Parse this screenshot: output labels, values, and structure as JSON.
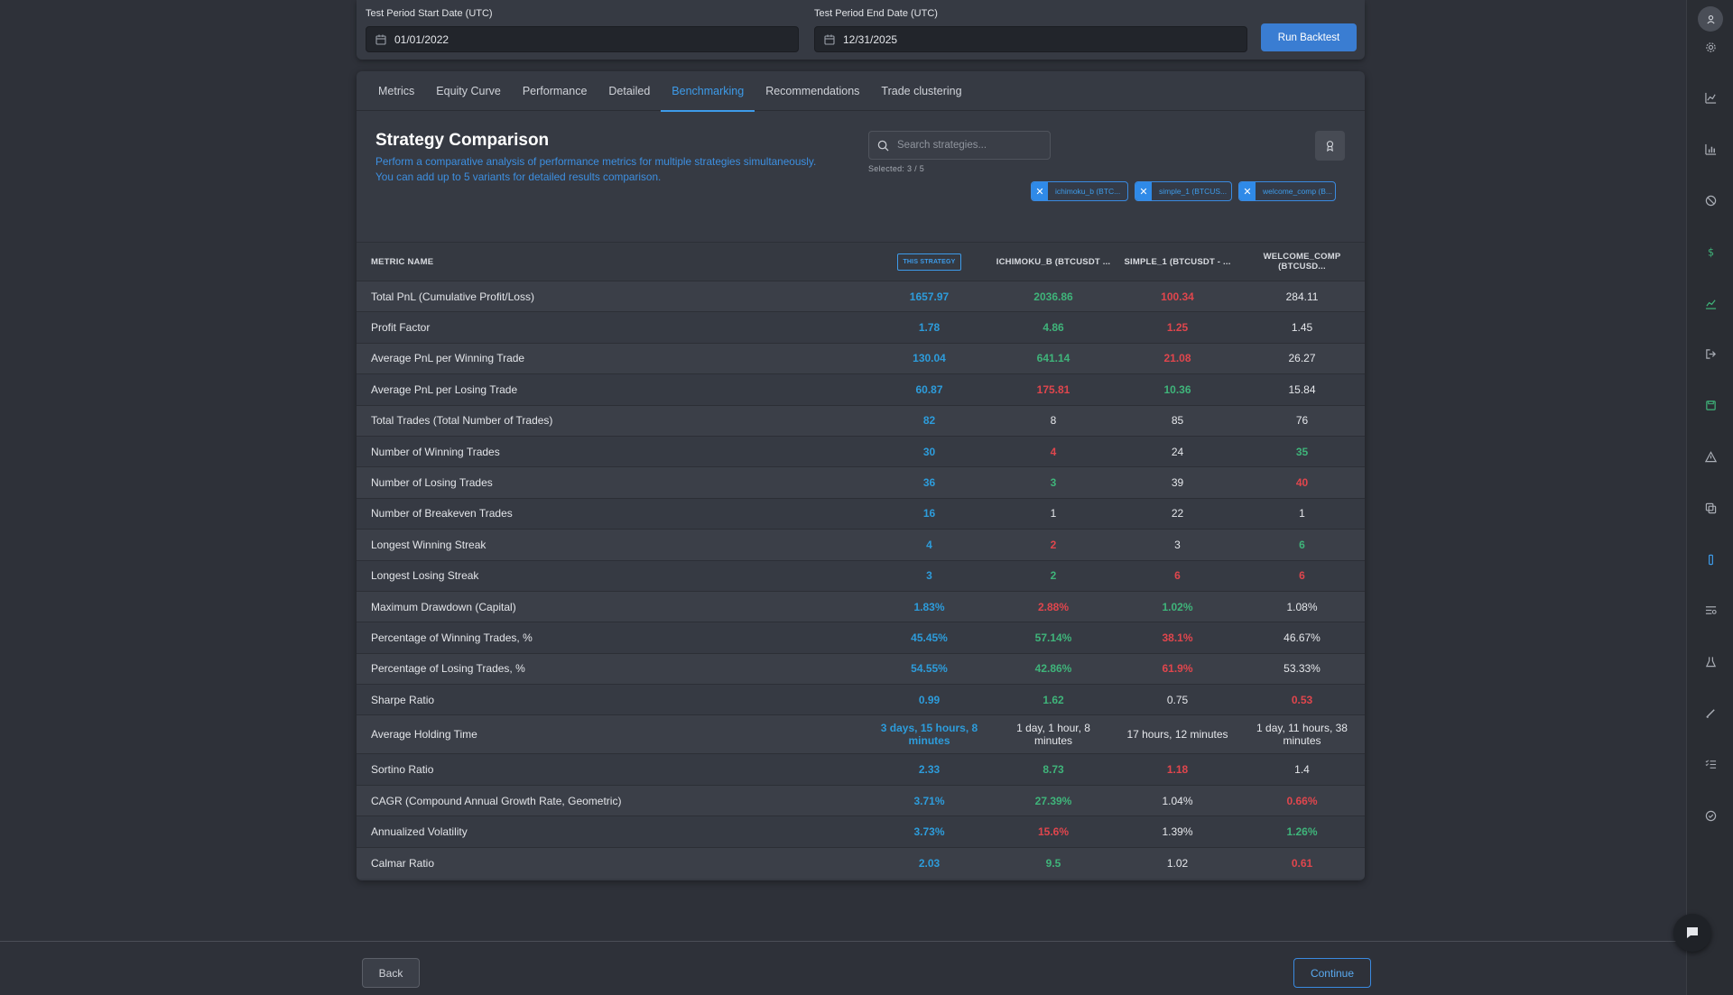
{
  "period": {
    "start_label": "Test Period Start Date (UTC)",
    "start_value": "01/01/2022",
    "end_label": "Test Period End Date (UTC)",
    "end_value": "12/31/2025",
    "run_label": "Run Backtest"
  },
  "tabs": [
    "Metrics",
    "Equity Curve",
    "Performance",
    "Detailed",
    "Benchmarking",
    "Recommendations",
    "Trade clustering"
  ],
  "active_tab": "Benchmarking",
  "comparison": {
    "title": "Strategy Comparison",
    "desc_line1": "Perform a comparative analysis of performance metrics for multiple strategies simultaneously.",
    "desc_line2": "You can add up to 5 variants for detailed results comparison.",
    "search_placeholder": "Search strategies...",
    "selected_count": "Selected: 3 / 5",
    "chips": [
      "ichimoku_b (BTC...",
      "simple_1 (BTCUS...",
      "welcome_comp (B..."
    ]
  },
  "table": {
    "metric_header": "METRIC NAME",
    "this_strategy_label": "THIS STRATEGY",
    "col_headers": [
      "ICHIMOKU_B (BTCUSDT ...",
      "SIMPLE_1 (BTCUSDT - ...",
      "WELCOME_COMP (BTCUSD..."
    ],
    "rows": [
      {
        "metric": "Total PnL (Cumulative Profit/Loss)",
        "cells": [
          {
            "v": "1657.97",
            "c": "blue"
          },
          {
            "v": "2036.86",
            "c": "green"
          },
          {
            "v": "100.34",
            "c": "red"
          },
          {
            "v": "284.11",
            "c": "plain"
          }
        ]
      },
      {
        "metric": "Profit Factor",
        "cells": [
          {
            "v": "1.78",
            "c": "blue"
          },
          {
            "v": "4.86",
            "c": "green"
          },
          {
            "v": "1.25",
            "c": "red"
          },
          {
            "v": "1.45",
            "c": "plain"
          }
        ]
      },
      {
        "metric": "Average PnL per Winning Trade",
        "cells": [
          {
            "v": "130.04",
            "c": "blue"
          },
          {
            "v": "641.14",
            "c": "green"
          },
          {
            "v": "21.08",
            "c": "red"
          },
          {
            "v": "26.27",
            "c": "plain"
          }
        ]
      },
      {
        "metric": "Average PnL per Losing Trade",
        "cells": [
          {
            "v": "60.87",
            "c": "blue"
          },
          {
            "v": "175.81",
            "c": "red"
          },
          {
            "v": "10.36",
            "c": "green"
          },
          {
            "v": "15.84",
            "c": "plain"
          }
        ]
      },
      {
        "metric": "Total Trades (Total Number of Trades)",
        "cells": [
          {
            "v": "82",
            "c": "blue"
          },
          {
            "v": "8",
            "c": "plain"
          },
          {
            "v": "85",
            "c": "plain"
          },
          {
            "v": "76",
            "c": "plain"
          }
        ]
      },
      {
        "metric": "Number of Winning Trades",
        "cells": [
          {
            "v": "30",
            "c": "blue"
          },
          {
            "v": "4",
            "c": "red"
          },
          {
            "v": "24",
            "c": "plain"
          },
          {
            "v": "35",
            "c": "green"
          }
        ]
      },
      {
        "metric": "Number of Losing Trades",
        "cells": [
          {
            "v": "36",
            "c": "blue"
          },
          {
            "v": "3",
            "c": "green"
          },
          {
            "v": "39",
            "c": "plain"
          },
          {
            "v": "40",
            "c": "red"
          }
        ]
      },
      {
        "metric": "Number of Breakeven Trades",
        "cells": [
          {
            "v": "16",
            "c": "blue"
          },
          {
            "v": "1",
            "c": "plain"
          },
          {
            "v": "22",
            "c": "plain"
          },
          {
            "v": "1",
            "c": "plain"
          }
        ]
      },
      {
        "metric": "Longest Winning Streak",
        "cells": [
          {
            "v": "4",
            "c": "blue"
          },
          {
            "v": "2",
            "c": "red"
          },
          {
            "v": "3",
            "c": "plain"
          },
          {
            "v": "6",
            "c": "green"
          }
        ]
      },
      {
        "metric": "Longest Losing Streak",
        "cells": [
          {
            "v": "3",
            "c": "blue"
          },
          {
            "v": "2",
            "c": "green"
          },
          {
            "v": "6",
            "c": "red"
          },
          {
            "v": "6",
            "c": "red"
          }
        ]
      },
      {
        "metric": "Maximum Drawdown (Capital)",
        "cells": [
          {
            "v": "1.83%",
            "c": "blue"
          },
          {
            "v": "2.88%",
            "c": "red"
          },
          {
            "v": "1.02%",
            "c": "green"
          },
          {
            "v": "1.08%",
            "c": "plain"
          }
        ]
      },
      {
        "metric": "Percentage of Winning Trades, %",
        "cells": [
          {
            "v": "45.45%",
            "c": "blue"
          },
          {
            "v": "57.14%",
            "c": "green"
          },
          {
            "v": "38.1%",
            "c": "red"
          },
          {
            "v": "46.67%",
            "c": "plain"
          }
        ]
      },
      {
        "metric": "Percentage of Losing Trades, %",
        "cells": [
          {
            "v": "54.55%",
            "c": "blue"
          },
          {
            "v": "42.86%",
            "c": "green"
          },
          {
            "v": "61.9%",
            "c": "red"
          },
          {
            "v": "53.33%",
            "c": "plain"
          }
        ]
      },
      {
        "metric": "Sharpe Ratio",
        "cells": [
          {
            "v": "0.99",
            "c": "blue"
          },
          {
            "v": "1.62",
            "c": "green"
          },
          {
            "v": "0.75",
            "c": "plain"
          },
          {
            "v": "0.53",
            "c": "red"
          }
        ]
      },
      {
        "metric": "Average Holding Time",
        "tall": true,
        "cells": [
          {
            "v": "3 days, 15 hours, 8 minutes",
            "c": "blue"
          },
          {
            "v": "1 day, 1 hour, 8 minutes",
            "c": "plain"
          },
          {
            "v": "17 hours, 12 minutes",
            "c": "plain"
          },
          {
            "v": "1 day, 11 hours, 38 minutes",
            "c": "plain"
          }
        ]
      },
      {
        "metric": "Sortino Ratio",
        "cells": [
          {
            "v": "2.33",
            "c": "blue"
          },
          {
            "v": "8.73",
            "c": "green"
          },
          {
            "v": "1.18",
            "c": "red"
          },
          {
            "v": "1.4",
            "c": "plain"
          }
        ]
      },
      {
        "metric": "CAGR (Compound Annual Growth Rate, Geometric)",
        "cells": [
          {
            "v": "3.71%",
            "c": "blue"
          },
          {
            "v": "27.39%",
            "c": "green"
          },
          {
            "v": "1.04%",
            "c": "plain"
          },
          {
            "v": "0.66%",
            "c": "red"
          }
        ]
      },
      {
        "metric": "Annualized Volatility",
        "cells": [
          {
            "v": "3.73%",
            "c": "blue"
          },
          {
            "v": "15.6%",
            "c": "red"
          },
          {
            "v": "1.39%",
            "c": "plain"
          },
          {
            "v": "1.26%",
            "c": "green"
          }
        ]
      },
      {
        "metric": "Calmar Ratio",
        "cells": [
          {
            "v": "2.03",
            "c": "blue"
          },
          {
            "v": "9.5",
            "c": "green"
          },
          {
            "v": "1.02",
            "c": "plain"
          },
          {
            "v": "0.61",
            "c": "red"
          }
        ]
      }
    ]
  },
  "footer": {
    "back_label": "Back",
    "continue_label": "Continue"
  },
  "rail_icons": [
    "gear-icon",
    "chart-icon",
    "bar-chart-icon",
    "ban-icon",
    "dollar-icon",
    "trend-icon",
    "logout-icon",
    "save-icon",
    "warning-icon",
    "copy-icon",
    "beaker-icon",
    "list-icon",
    "flask-icon",
    "pencil-icon",
    "checklist-icon",
    "check-circle-icon"
  ],
  "colors": {
    "accent": "#3d9be9",
    "positive": "#3fb47a",
    "negative": "#e0464d",
    "this_strategy": "#2d9cdb"
  }
}
